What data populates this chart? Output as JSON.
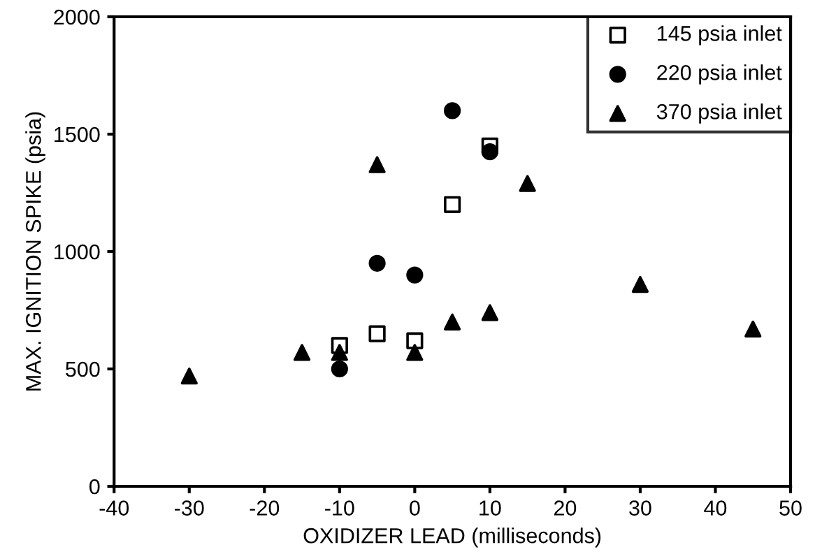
{
  "chart_data": {
    "type": "scatter",
    "xlabel": "OXIDIZER LEAD (milliseconds)",
    "ylabel": "MAX. IGNITION SPIKE (psia)",
    "xlim": [
      -40,
      50
    ],
    "xticks": [
      -40,
      -30,
      -20,
      -10,
      0,
      10,
      20,
      30,
      40,
      50
    ],
    "ylim": [
      0,
      2000
    ],
    "yticks": [
      0,
      500,
      1000,
      1500,
      2000
    ],
    "grid": false,
    "legend": "top right",
    "series": [
      {
        "name": "145 psia inlet",
        "marker": "square",
        "color": "#000000",
        "x": [
          -10,
          -5,
          0,
          5,
          10
        ],
        "values": [
          600,
          650,
          620,
          1200,
          1450
        ]
      },
      {
        "name": "220 psia inlet",
        "marker": "circle",
        "color": "#000000",
        "x": [
          -10,
          -5,
          0,
          5,
          10
        ],
        "values": [
          500,
          950,
          900,
          1600,
          1425
        ]
      },
      {
        "name": "370 psia inlet",
        "marker": "triangle",
        "color": "#000000",
        "x": [
          -30,
          -15,
          -10,
          -5,
          0,
          5,
          10,
          15,
          30,
          45
        ],
        "values": [
          470,
          570,
          570,
          1370,
          570,
          700,
          740,
          1290,
          860,
          670
        ]
      }
    ]
  }
}
